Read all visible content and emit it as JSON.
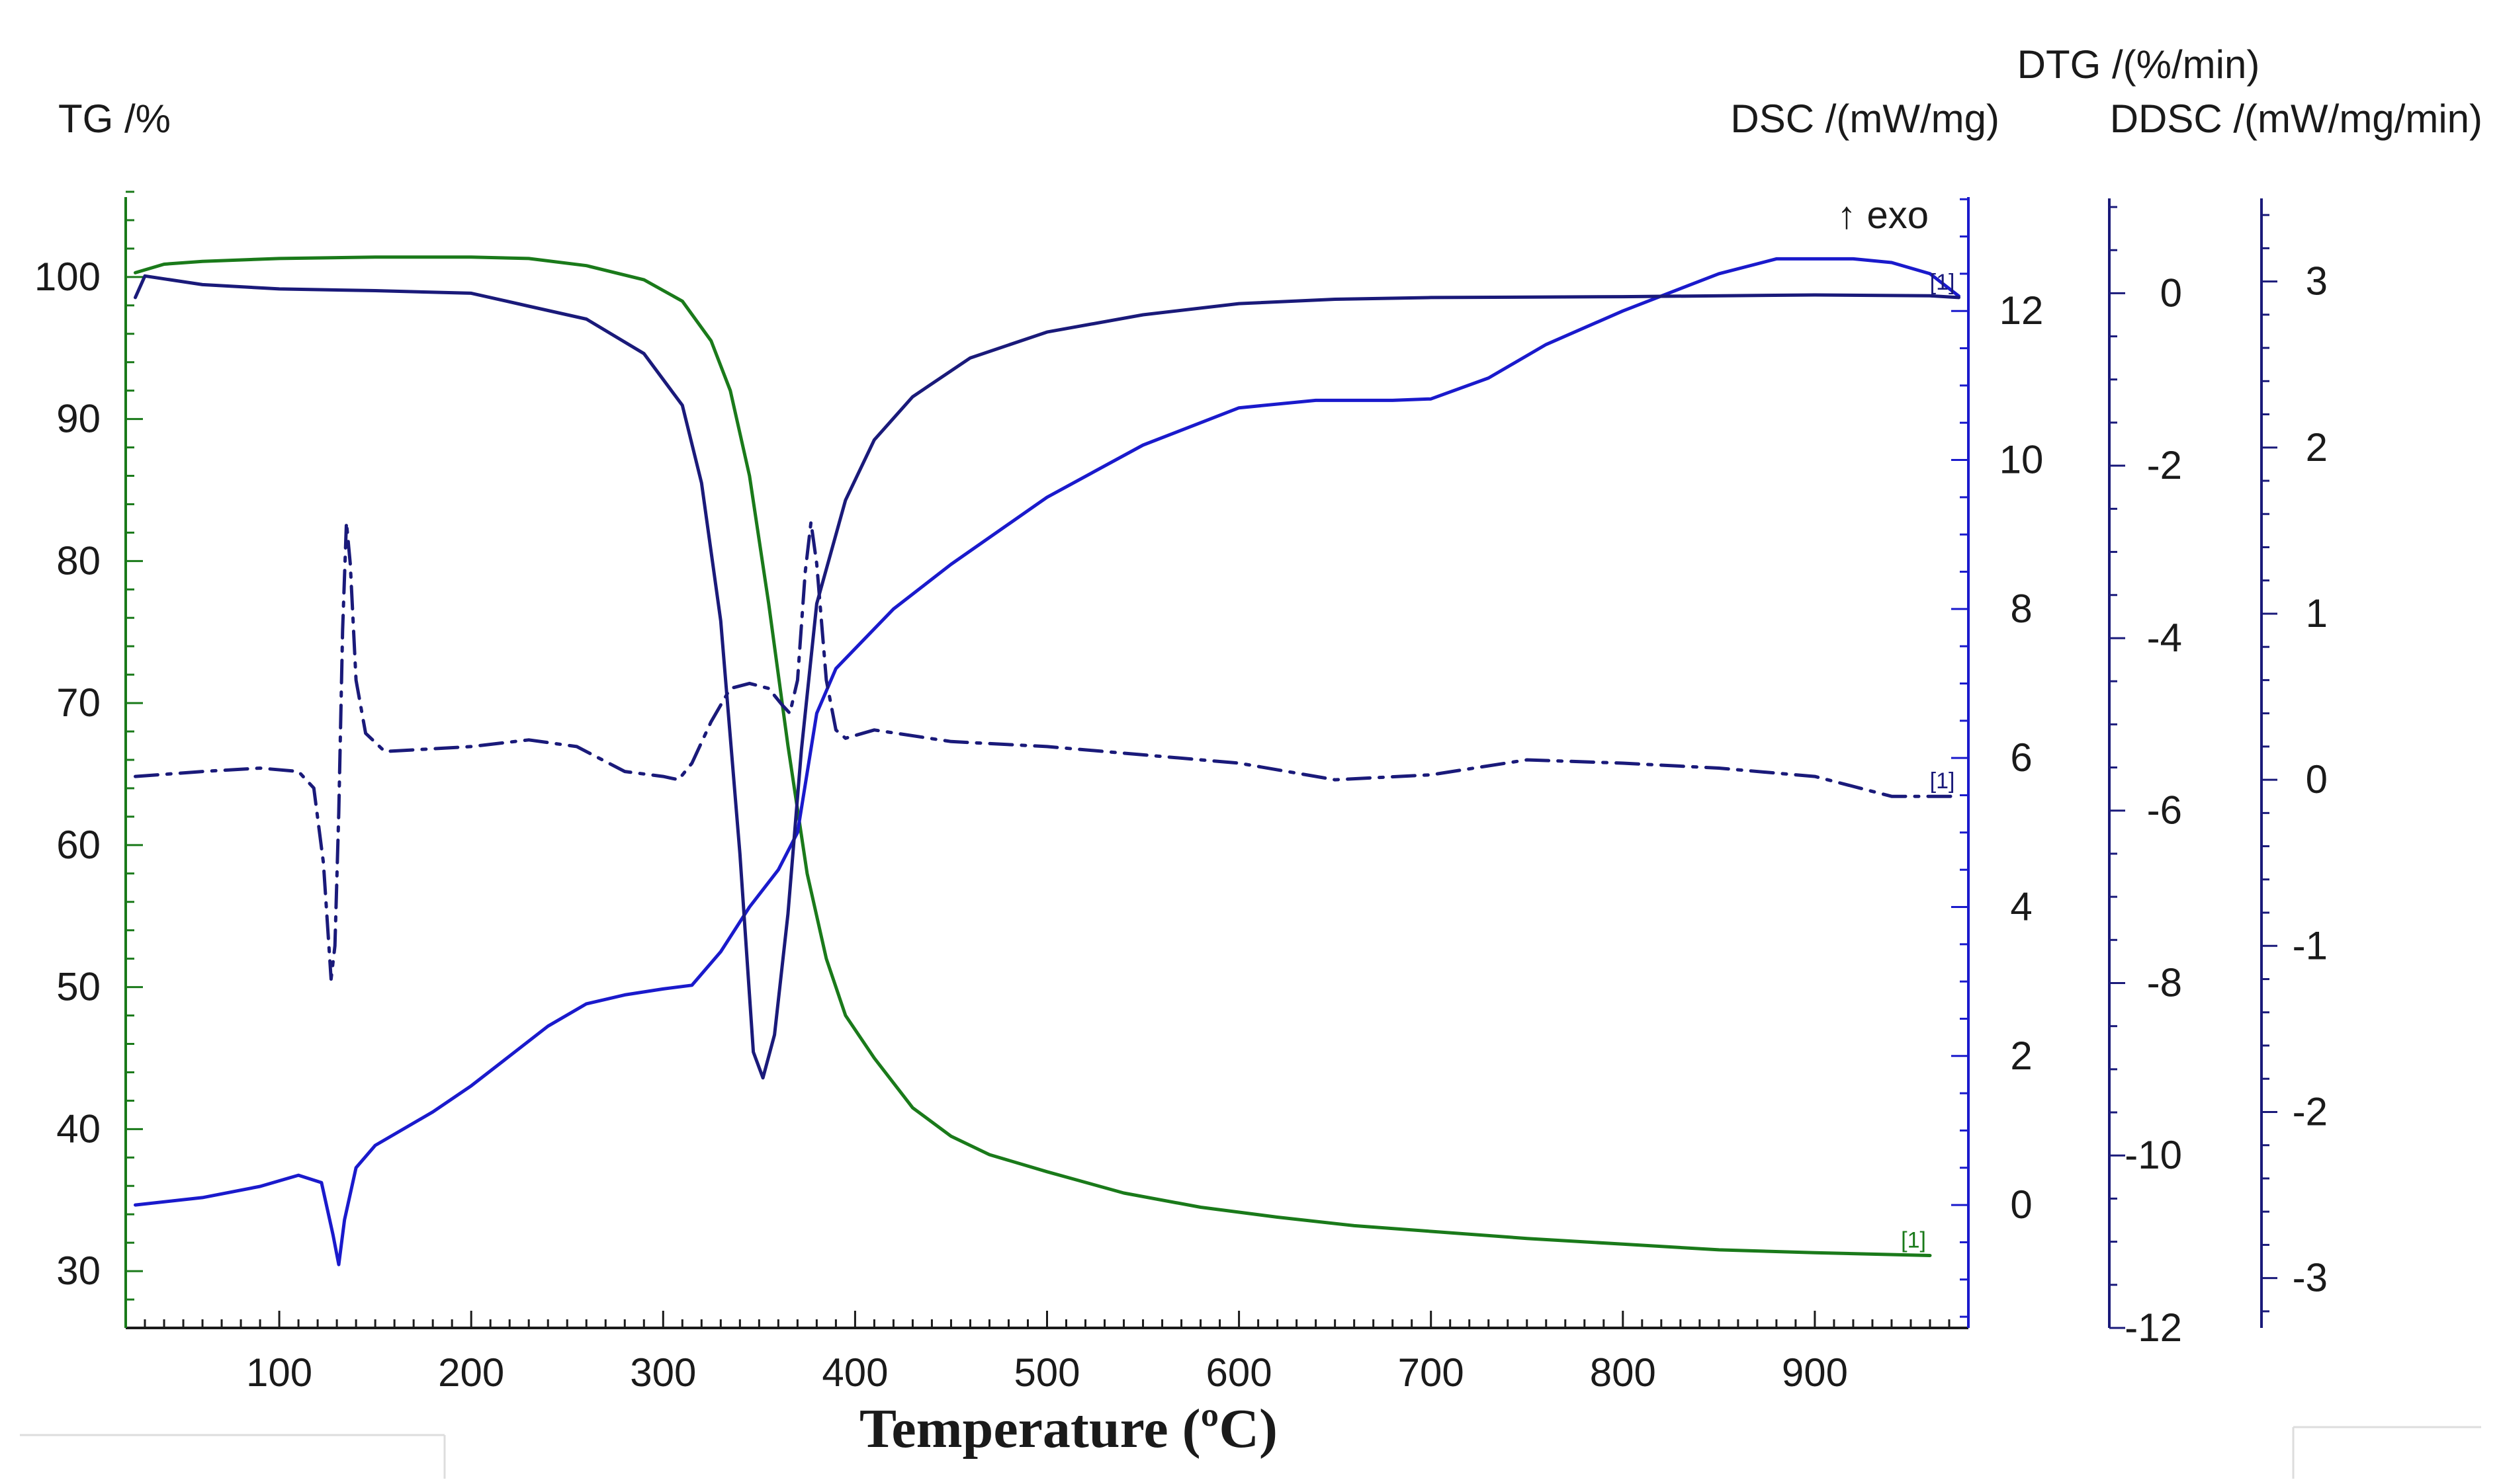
{
  "chart_data": {
    "type": "line",
    "x_axis": {
      "label": "Temperature (ºC)",
      "range": [
        20,
        980
      ],
      "ticks": [
        100,
        200,
        300,
        400,
        500,
        600,
        700,
        800,
        900
      ]
    },
    "axes": {
      "tg": {
        "label": "TG /%",
        "range": [
          26,
          106
        ],
        "ticks": [
          30,
          40,
          50,
          60,
          70,
          80,
          90,
          100
        ],
        "color": "#1a7a1a"
      },
      "dsc": {
        "label": "DSC /(mW/mg)",
        "range": [
          -1.65,
          13.6
        ],
        "ticks": [
          0,
          2,
          4,
          6,
          8,
          10,
          12
        ],
        "color": "#1a1acc",
        "annotation": "↑ exo"
      },
      "dtg": {
        "label": "DTG /(%/min)",
        "range": [
          -12,
          1.1
        ],
        "ticks": [
          0,
          -2,
          -4,
          -6,
          -8,
          -10,
          -12
        ],
        "color": "#1a1a7a"
      },
      "ddsc": {
        "label": "DDSC /(mW/mg/min)",
        "range": [
          -3.3,
          3.5
        ],
        "ticks": [
          3,
          2,
          1,
          0,
          -1,
          -2,
          -3
        ],
        "color": "#1a1a7a"
      }
    },
    "series": [
      {
        "name": "TG",
        "axis": "tg",
        "color": "#1a7a1a",
        "style": "solid",
        "marker_label": "[1]",
        "points": [
          [
            25,
            100.3
          ],
          [
            40,
            100.9
          ],
          [
            60,
            101.1
          ],
          [
            100,
            101.3
          ],
          [
            150,
            101.4
          ],
          [
            200,
            101.4
          ],
          [
            230,
            101.3
          ],
          [
            260,
            100.8
          ],
          [
            290,
            99.8
          ],
          [
            310,
            98.3
          ],
          [
            325,
            95.5
          ],
          [
            335,
            92
          ],
          [
            345,
            86
          ],
          [
            355,
            77
          ],
          [
            365,
            67
          ],
          [
            375,
            58
          ],
          [
            385,
            52
          ],
          [
            395,
            48
          ],
          [
            410,
            45
          ],
          [
            430,
            41.5
          ],
          [
            450,
            39.5
          ],
          [
            470,
            38.2
          ],
          [
            500,
            37
          ],
          [
            540,
            35.5
          ],
          [
            580,
            34.5
          ],
          [
            620,
            33.8
          ],
          [
            660,
            33.2
          ],
          [
            700,
            32.8
          ],
          [
            750,
            32.3
          ],
          [
            800,
            31.9
          ],
          [
            850,
            31.5
          ],
          [
            900,
            31.3
          ],
          [
            960,
            31.1
          ]
        ]
      },
      {
        "name": "DSC",
        "axis": "dsc",
        "color": "#1a1acc",
        "style": "solid",
        "marker_label": "",
        "points": [
          [
            25,
            0
          ],
          [
            60,
            0.1
          ],
          [
            90,
            0.25
          ],
          [
            110,
            0.4
          ],
          [
            122,
            0.3
          ],
          [
            128,
            -0.4
          ],
          [
            131,
            -0.8
          ],
          [
            134,
            -0.2
          ],
          [
            140,
            0.5
          ],
          [
            150,
            0.8
          ],
          [
            180,
            1.25
          ],
          [
            200,
            1.6
          ],
          [
            220,
            2
          ],
          [
            240,
            2.4
          ],
          [
            260,
            2.7
          ],
          [
            280,
            2.82
          ],
          [
            300,
            2.9
          ],
          [
            315,
            2.95
          ],
          [
            330,
            3.4
          ],
          [
            345,
            4
          ],
          [
            360,
            4.5
          ],
          [
            370,
            5
          ],
          [
            380,
            6.6
          ],
          [
            390,
            7.2
          ],
          [
            405,
            7.6
          ],
          [
            420,
            8
          ],
          [
            450,
            8.6
          ],
          [
            500,
            9.5
          ],
          [
            550,
            10.2
          ],
          [
            600,
            10.7
          ],
          [
            640,
            10.8
          ],
          [
            680,
            10.8
          ],
          [
            700,
            10.82
          ],
          [
            730,
            11.1
          ],
          [
            760,
            11.55
          ],
          [
            800,
            12
          ],
          [
            850,
            12.5
          ],
          [
            880,
            12.7
          ],
          [
            920,
            12.7
          ],
          [
            940,
            12.65
          ],
          [
            960,
            12.5
          ],
          [
            975,
            12.2
          ]
        ]
      },
      {
        "name": "DTG",
        "axis": "dtg",
        "color": "#1a1a7a",
        "style": "solid",
        "marker_label": "[1]",
        "points": [
          [
            25,
            -0.05
          ],
          [
            30,
            0.2
          ],
          [
            60,
            0.1
          ],
          [
            100,
            0.05
          ],
          [
            150,
            0.03
          ],
          [
            200,
            0
          ],
          [
            230,
            -0.15
          ],
          [
            260,
            -0.3
          ],
          [
            290,
            -0.7
          ],
          [
            310,
            -1.3
          ],
          [
            320,
            -2.2
          ],
          [
            330,
            -3.8
          ],
          [
            340,
            -6.5
          ],
          [
            347,
            -8.8
          ],
          [
            352,
            -9.1
          ],
          [
            358,
            -8.6
          ],
          [
            365,
            -7.2
          ],
          [
            372,
            -5.3
          ],
          [
            380,
            -3.6
          ],
          [
            395,
            -2.4
          ],
          [
            410,
            -1.7
          ],
          [
            430,
            -1.2
          ],
          [
            460,
            -0.75
          ],
          [
            500,
            -0.45
          ],
          [
            550,
            -0.25
          ],
          [
            600,
            -0.12
          ],
          [
            650,
            -0.07
          ],
          [
            700,
            -0.05
          ],
          [
            800,
            -0.04
          ],
          [
            900,
            -0.02
          ],
          [
            960,
            -0.03
          ],
          [
            975,
            -0.05
          ]
        ]
      },
      {
        "name": "DDSC",
        "axis": "ddsc",
        "color": "#1a1a7a",
        "style": "dashdot",
        "marker_label": "[1]",
        "points": [
          [
            25,
            0.02
          ],
          [
            60,
            0.05
          ],
          [
            90,
            0.07
          ],
          [
            110,
            0.05
          ],
          [
            118,
            -0.05
          ],
          [
            123,
            -0.5
          ],
          [
            127,
            -1.2
          ],
          [
            129,
            -1.0
          ],
          [
            131,
            -0.2
          ],
          [
            133,
            0.9
          ],
          [
            135,
            1.55
          ],
          [
            137,
            1.3
          ],
          [
            140,
            0.6
          ],
          [
            145,
            0.28
          ],
          [
            155,
            0.17
          ],
          [
            200,
            0.2
          ],
          [
            230,
            0.24
          ],
          [
            255,
            0.2
          ],
          [
            280,
            0.05
          ],
          [
            300,
            0.02
          ],
          [
            308,
            0.0
          ],
          [
            315,
            0.1
          ],
          [
            325,
            0.35
          ],
          [
            335,
            0.55
          ],
          [
            345,
            0.58
          ],
          [
            355,
            0.55
          ],
          [
            362,
            0.45
          ],
          [
            366,
            0.4
          ],
          [
            370,
            0.6
          ],
          [
            374,
            1.25
          ],
          [
            377,
            1.55
          ],
          [
            380,
            1.3
          ],
          [
            385,
            0.6
          ],
          [
            390,
            0.3
          ],
          [
            395,
            0.25
          ],
          [
            410,
            0.3
          ],
          [
            450,
            0.23
          ],
          [
            500,
            0.2
          ],
          [
            550,
            0.15
          ],
          [
            600,
            0.1
          ],
          [
            650,
            0.0
          ],
          [
            700,
            0.03
          ],
          [
            750,
            0.12
          ],
          [
            800,
            0.1
          ],
          [
            850,
            0.07
          ],
          [
            900,
            0.02
          ],
          [
            940,
            -0.1
          ],
          [
            960,
            -0.1
          ],
          [
            975,
            -0.1
          ]
        ]
      }
    ]
  }
}
